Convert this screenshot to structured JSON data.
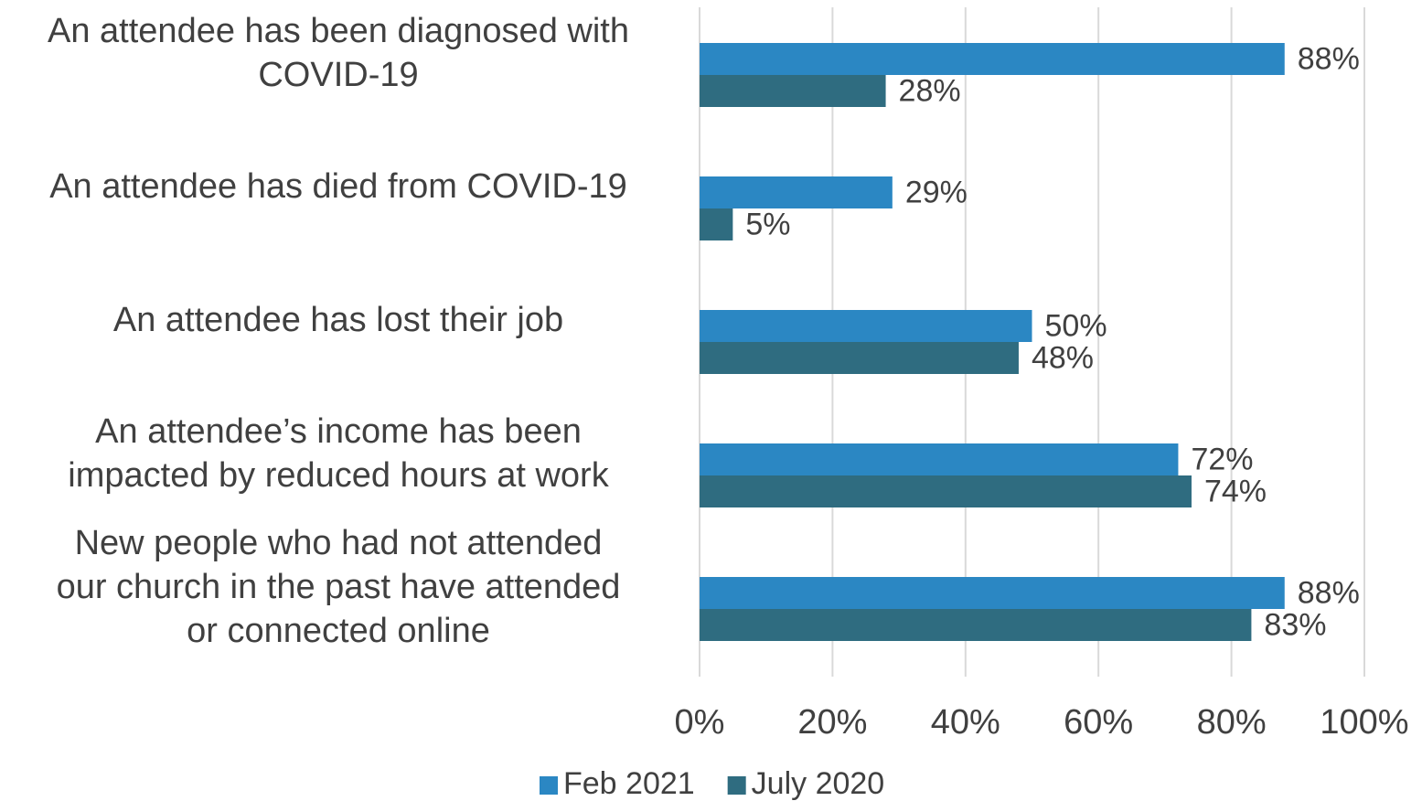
{
  "chart_data": {
    "type": "hbar",
    "categories": [
      [
        "An attendee has been diagnosed with",
        "COVID-19"
      ],
      [
        "An attendee has died from COVID-19"
      ],
      [
        "An attendee has lost their job"
      ],
      [
        "An attendee’s income has been",
        "impacted by reduced hours at work"
      ],
      [
        "New people who had not attended",
        "our church in the past have attended",
        "or connected online"
      ]
    ],
    "series": [
      {
        "name": "Feb 2021",
        "color": "#2b87c3",
        "values": [
          88,
          29,
          50,
          72,
          88
        ],
        "value_labels": [
          "88%",
          "29%",
          "50%",
          "72%",
          "88%"
        ]
      },
      {
        "name": "July 2020",
        "color": "#2f6c80",
        "values": [
          28,
          5,
          48,
          74,
          83
        ],
        "value_labels": [
          "28%",
          "5%",
          "48%",
          "74%",
          "83%"
        ]
      }
    ],
    "xlim": [
      0,
      100
    ],
    "xticks": [
      {
        "value": 0,
        "label": "0%"
      },
      {
        "value": 20,
        "label": "20%"
      },
      {
        "value": 40,
        "label": "40%"
      },
      {
        "value": 60,
        "label": "60%"
      },
      {
        "value": 80,
        "label": "80%"
      },
      {
        "value": 100,
        "label": "100%"
      }
    ],
    "grid": true,
    "legend": "bottom"
  }
}
